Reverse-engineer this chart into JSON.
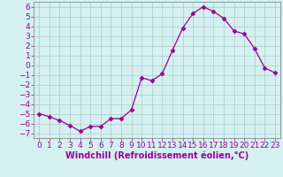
{
  "x": [
    0,
    1,
    2,
    3,
    4,
    5,
    6,
    7,
    8,
    9,
    10,
    11,
    12,
    13,
    14,
    15,
    16,
    17,
    18,
    19,
    20,
    21,
    22,
    23
  ],
  "y": [
    -5.0,
    -5.3,
    -5.7,
    -6.2,
    -6.8,
    -6.3,
    -6.3,
    -5.5,
    -5.5,
    -4.6,
    -1.3,
    -1.6,
    -0.9,
    1.5,
    3.8,
    5.3,
    6.0,
    5.5,
    4.8,
    3.5,
    3.2,
    1.7,
    -0.3,
    -0.8
  ],
  "line_color": "#990099",
  "marker": "D",
  "marker_size": 2.5,
  "background_color": "#d4f0f0",
  "grid_color": "#b0c8c8",
  "xlabel": "Windchill (Refroidissement éolien,°C)",
  "xlabel_fontsize": 7,
  "ylim": [
    -7.5,
    6.5
  ],
  "xlim": [
    -0.5,
    23.5
  ],
  "yticks": [
    -7,
    -6,
    -5,
    -4,
    -3,
    -2,
    -1,
    0,
    1,
    2,
    3,
    4,
    5,
    6
  ],
  "xticks": [
    0,
    1,
    2,
    3,
    4,
    5,
    6,
    7,
    8,
    9,
    10,
    11,
    12,
    13,
    14,
    15,
    16,
    17,
    18,
    19,
    20,
    21,
    22,
    23
  ],
  "tick_fontsize": 6.5,
  "tick_color": "#990099",
  "label_color": "#990099",
  "spine_color": "#888888"
}
